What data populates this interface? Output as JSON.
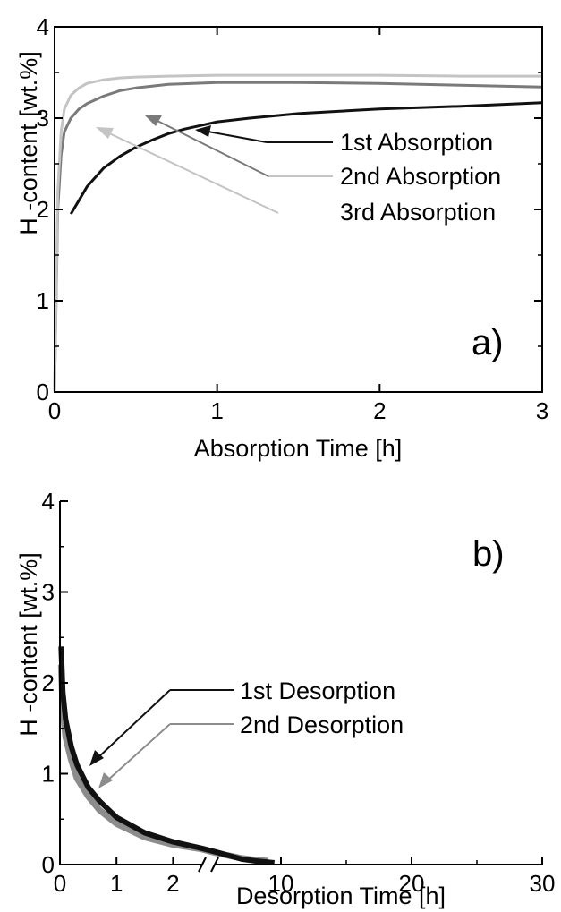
{
  "chart_data": [
    {
      "type": "line",
      "panel_label": "a)",
      "xlabel": "Absorption Time [h]",
      "ylabel": "H -content [wt.%]",
      "xlim": [
        0,
        3
      ],
      "ylim": [
        0,
        4
      ],
      "x_ticks": [
        0,
        1,
        2,
        3
      ],
      "y_ticks": [
        0,
        1,
        2,
        3,
        4
      ],
      "x_tick_labels": [
        "0",
        "1",
        "2",
        "3"
      ],
      "y_tick_labels": [
        "0",
        "1",
        "2",
        "3",
        "4"
      ],
      "grid": false,
      "legend_position": "right",
      "series": [
        {
          "name": "1st Absorption",
          "color": "#111111",
          "points": [
            [
              0.1,
              1.95
            ],
            [
              0.15,
              2.1
            ],
            [
              0.2,
              2.25
            ],
            [
              0.3,
              2.45
            ],
            [
              0.4,
              2.58
            ],
            [
              0.5,
              2.68
            ],
            [
              0.6,
              2.76
            ],
            [
              0.7,
              2.83
            ],
            [
              0.8,
              2.88
            ],
            [
              0.9,
              2.92
            ],
            [
              1.0,
              2.96
            ],
            [
              1.2,
              3.0
            ],
            [
              1.5,
              3.05
            ],
            [
              1.8,
              3.08
            ],
            [
              2.0,
              3.1
            ],
            [
              2.5,
              3.13
            ],
            [
              3.0,
              3.17
            ]
          ]
        },
        {
          "name": "2nd Absorption",
          "color": "#7a7a7a",
          "points": [
            [
              0,
              0
            ],
            [
              0.02,
              2.0
            ],
            [
              0.04,
              2.6
            ],
            [
              0.06,
              2.85
            ],
            [
              0.1,
              3.0
            ],
            [
              0.15,
              3.1
            ],
            [
              0.2,
              3.16
            ],
            [
              0.3,
              3.24
            ],
            [
              0.4,
              3.3
            ],
            [
              0.5,
              3.33
            ],
            [
              0.7,
              3.37
            ],
            [
              1.0,
              3.39
            ],
            [
              1.5,
              3.39
            ],
            [
              2.0,
              3.38
            ],
            [
              2.5,
              3.36
            ],
            [
              3.0,
              3.34
            ]
          ]
        },
        {
          "name": "3rd Absorption",
          "color": "#c4c4c4",
          "points": [
            [
              0,
              0
            ],
            [
              0.02,
              2.2
            ],
            [
              0.04,
              2.85
            ],
            [
              0.06,
              3.1
            ],
            [
              0.1,
              3.25
            ],
            [
              0.15,
              3.33
            ],
            [
              0.2,
              3.38
            ],
            [
              0.3,
              3.42
            ],
            [
              0.4,
              3.44
            ],
            [
              0.5,
              3.45
            ],
            [
              0.7,
              3.46
            ],
            [
              1.0,
              3.47
            ],
            [
              1.5,
              3.47
            ],
            [
              2.0,
              3.47
            ],
            [
              2.5,
              3.46
            ],
            [
              3.0,
              3.46
            ]
          ]
        }
      ]
    },
    {
      "type": "line",
      "panel_label": "b)",
      "xlabel": "Desorption Time [h]",
      "ylabel": "H -content [wt.%]",
      "ylim": [
        0,
        4
      ],
      "y_ticks": [
        0,
        1,
        2,
        3,
        4
      ],
      "y_tick_labels": [
        "0",
        "1",
        "2",
        "3",
        "4"
      ],
      "x_axis_break": [
        2.5,
        5
      ],
      "x_segments": [
        {
          "range": [
            0,
            2.5
          ],
          "ticks": [
            0,
            1,
            2
          ]
        },
        {
          "range": [
            5,
            30
          ],
          "ticks": [
            10,
            20,
            30
          ]
        }
      ],
      "x_tick_labels": [
        "0",
        "1",
        "2",
        "10",
        "20",
        "30"
      ],
      "grid": false,
      "legend_position": "center-right",
      "series": [
        {
          "name": "1st Desorption",
          "color": "#111111",
          "points": [
            [
              0.02,
              2.4
            ],
            [
              0.05,
              1.9
            ],
            [
              0.1,
              1.6
            ],
            [
              0.2,
              1.3
            ],
            [
              0.3,
              1.1
            ],
            [
              0.5,
              0.85
            ],
            [
              0.7,
              0.7
            ],
            [
              1.0,
              0.52
            ],
            [
              1.5,
              0.35
            ],
            [
              2.0,
              0.25
            ],
            [
              2.5,
              0.18
            ],
            [
              5,
              0.14
            ],
            [
              6,
              0.1
            ],
            [
              7,
              0.06
            ],
            [
              8,
              0.04
            ],
            [
              9.5,
              0.02
            ]
          ]
        },
        {
          "name": "2nd Desorption",
          "color": "#8c8c8c",
          "points": [
            [
              0.02,
              2.2
            ],
            [
              0.05,
              1.7
            ],
            [
              0.1,
              1.4
            ],
            [
              0.2,
              1.15
            ],
            [
              0.3,
              0.95
            ],
            [
              0.5,
              0.75
            ],
            [
              0.7,
              0.6
            ],
            [
              1.0,
              0.45
            ],
            [
              1.5,
              0.3
            ],
            [
              2.0,
              0.22
            ],
            [
              2.5,
              0.17
            ],
            [
              5,
              0.13
            ],
            [
              6,
              0.1
            ],
            [
              7,
              0.07
            ],
            [
              8,
              0.05
            ],
            [
              9,
              0.04
            ]
          ]
        }
      ]
    }
  ]
}
